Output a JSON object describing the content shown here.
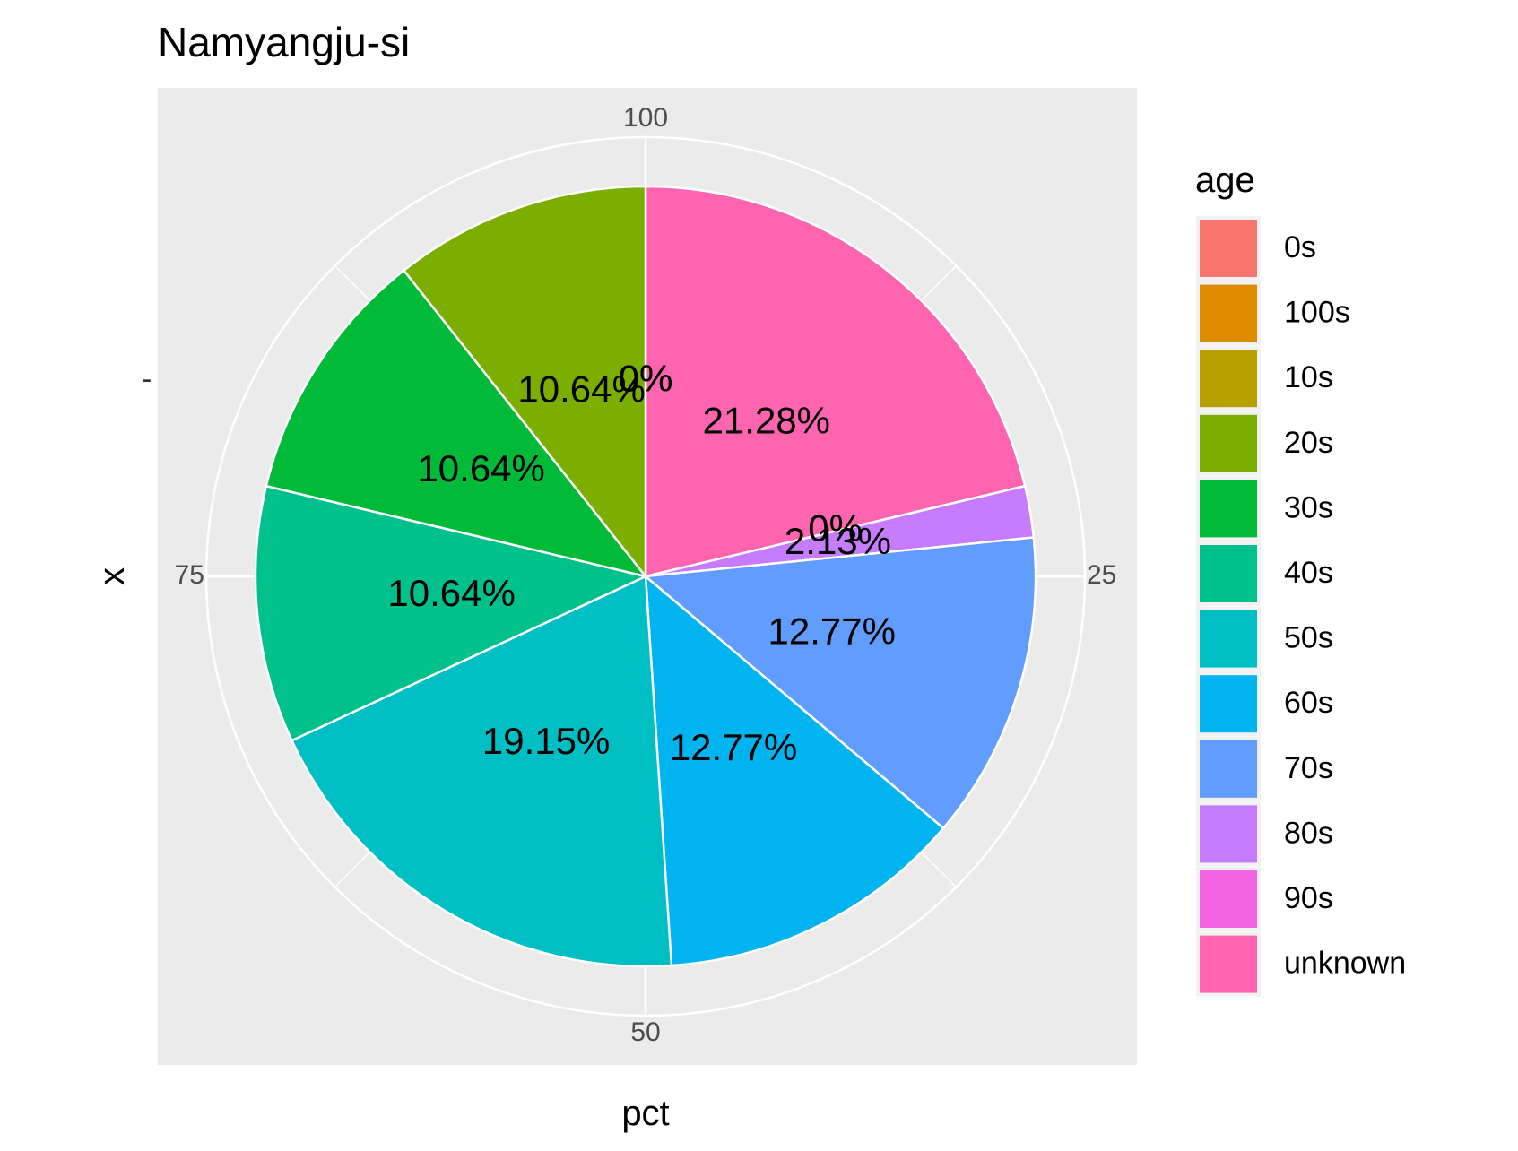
{
  "chart_data": {
    "type": "pie",
    "title": "Namyangju-si",
    "xlabel": "pct",
    "ylabel": "x",
    "y_tick_label": "-",
    "theta_ticks": [
      "100",
      "25",
      "50",
      "75"
    ],
    "legend": {
      "title": "age",
      "position": "right"
    },
    "slices": [
      {
        "label": "unknown",
        "value": 21.28,
        "pct_text": "21.28%",
        "color": "#FF64B0"
      },
      {
        "label": "90s",
        "value": 0,
        "pct_text": "0%",
        "color": "#F564E3"
      },
      {
        "label": "80s",
        "value": 2.13,
        "pct_text": "2.13%",
        "color": "#C77CFF"
      },
      {
        "label": "70s",
        "value": 12.77,
        "pct_text": "12.77%",
        "color": "#619CFF"
      },
      {
        "label": "60s",
        "value": 12.77,
        "pct_text": "12.77%",
        "color": "#00B4EF"
      },
      {
        "label": "50s",
        "value": 19.15,
        "pct_text": "19.15%",
        "color": "#00BFC4"
      },
      {
        "label": "40s",
        "value": 10.64,
        "pct_text": "10.64%",
        "color": "#00C08B"
      },
      {
        "label": "30s",
        "value": 10.64,
        "pct_text": "10.64%",
        "color": "#00BA38"
      },
      {
        "label": "20s",
        "value": 10.64,
        "pct_text": "10.64%",
        "color": "#7CAE00"
      },
      {
        "label": "10s",
        "value": 0,
        "pct_text": "0%",
        "color": "#B79F00"
      },
      {
        "label": "100s",
        "value": 0,
        "pct_text": "0%",
        "color": "#DE8C00"
      },
      {
        "label": "0s",
        "value": 0,
        "pct_text": "0%",
        "color": "#F8766D"
      }
    ],
    "legend_order": [
      "0s",
      "100s",
      "10s",
      "20s",
      "30s",
      "40s",
      "50s",
      "60s",
      "70s",
      "80s",
      "90s",
      "unknown"
    ],
    "panel_background": "#EBEBEB",
    "grid_color": "#FFFFFF"
  }
}
